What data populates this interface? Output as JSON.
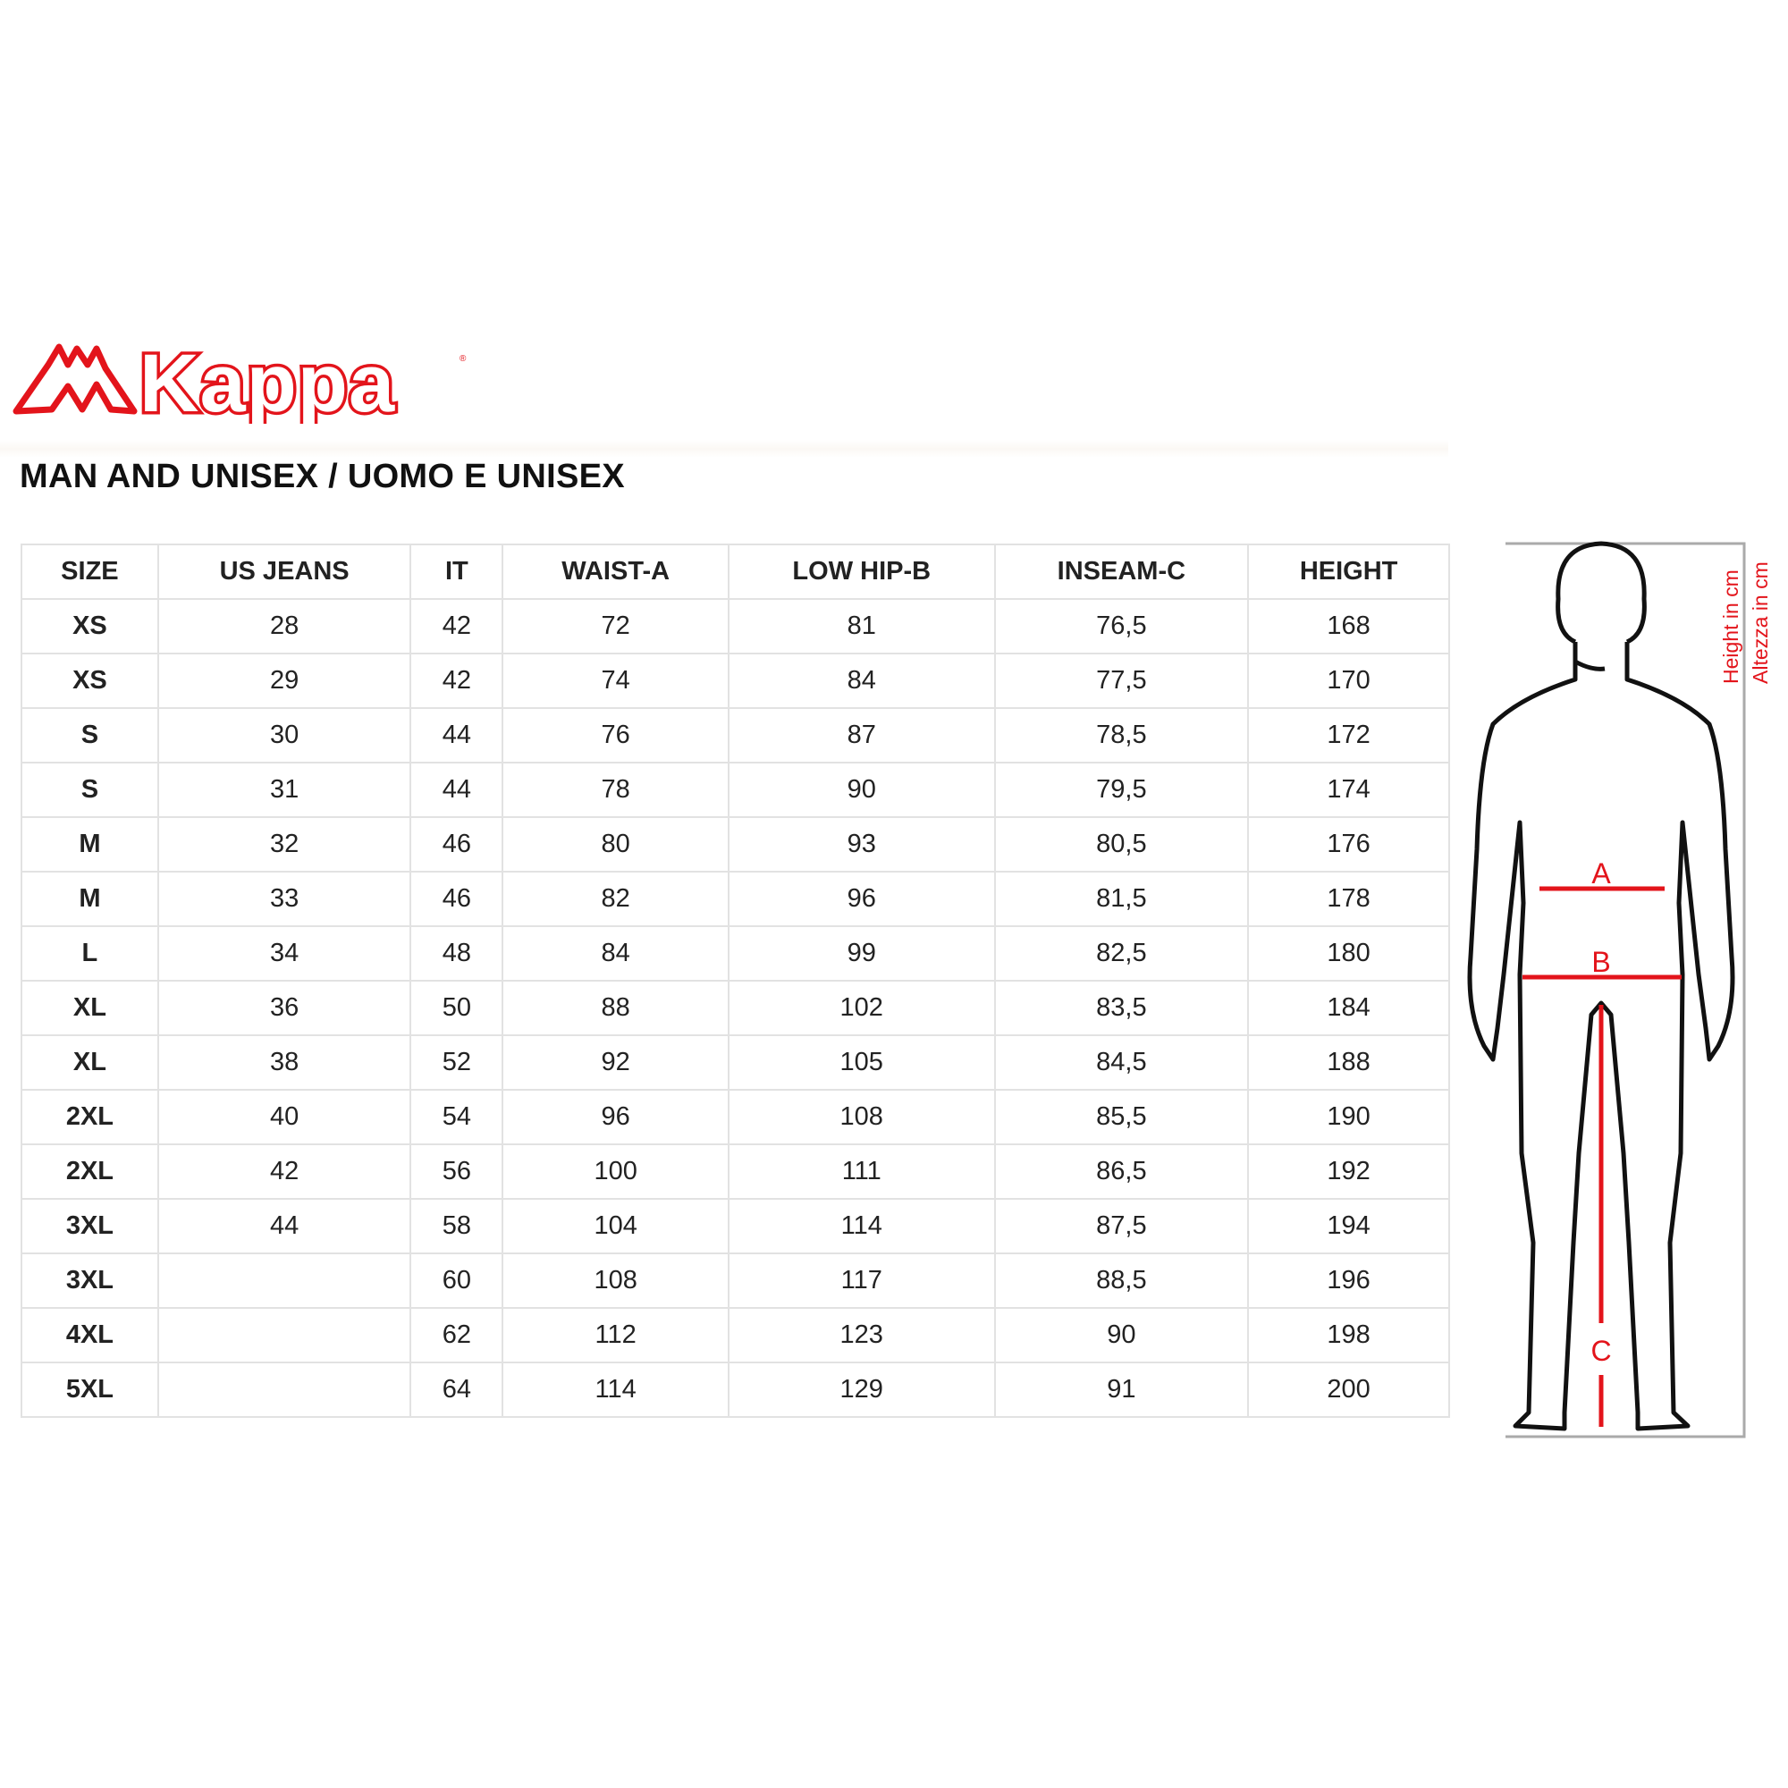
{
  "brand": {
    "name": "Kappa",
    "color": "#e3141b"
  },
  "title": "MAN AND UNISEX / UOMO E UNISEX",
  "table": {
    "headers": [
      "SIZE",
      "US JEANS",
      "IT",
      "WAIST-A",
      "LOW HIP-B",
      "INSEAM-C",
      "HEIGHT"
    ],
    "rows": [
      [
        "XS",
        "28",
        "42",
        "72",
        "81",
        "76,5",
        "168"
      ],
      [
        "XS",
        "29",
        "42",
        "74",
        "84",
        "77,5",
        "170"
      ],
      [
        "S",
        "30",
        "44",
        "76",
        "87",
        "78,5",
        "172"
      ],
      [
        "S",
        "31",
        "44",
        "78",
        "90",
        "79,5",
        "174"
      ],
      [
        "M",
        "32",
        "46",
        "80",
        "93",
        "80,5",
        "176"
      ],
      [
        "M",
        "33",
        "46",
        "82",
        "96",
        "81,5",
        "178"
      ],
      [
        "L",
        "34",
        "48",
        "84",
        "99",
        "82,5",
        "180"
      ],
      [
        "XL",
        "36",
        "50",
        "88",
        "102",
        "83,5",
        "184"
      ],
      [
        "XL",
        "38",
        "52",
        "92",
        "105",
        "84,5",
        "188"
      ],
      [
        "2XL",
        "40",
        "54",
        "96",
        "108",
        "85,5",
        "190"
      ],
      [
        "2XL",
        "42",
        "56",
        "100",
        "111",
        "86,5",
        "192"
      ],
      [
        "3XL",
        "44",
        "58",
        "104",
        "114",
        "87,5",
        "194"
      ],
      [
        "3XL",
        "",
        "60",
        "108",
        "117",
        "88,5",
        "196"
      ],
      [
        "4XL",
        "",
        "62",
        "112",
        "123",
        "90",
        "198"
      ],
      [
        "5XL",
        "",
        "64",
        "114",
        "129",
        "91",
        "200"
      ]
    ]
  },
  "figure": {
    "label_a": "A",
    "label_b": "B",
    "label_c": "C",
    "height_label_en": "Height in cm",
    "height_label_it": "Altezza in cm",
    "accent": "#e3141b"
  }
}
